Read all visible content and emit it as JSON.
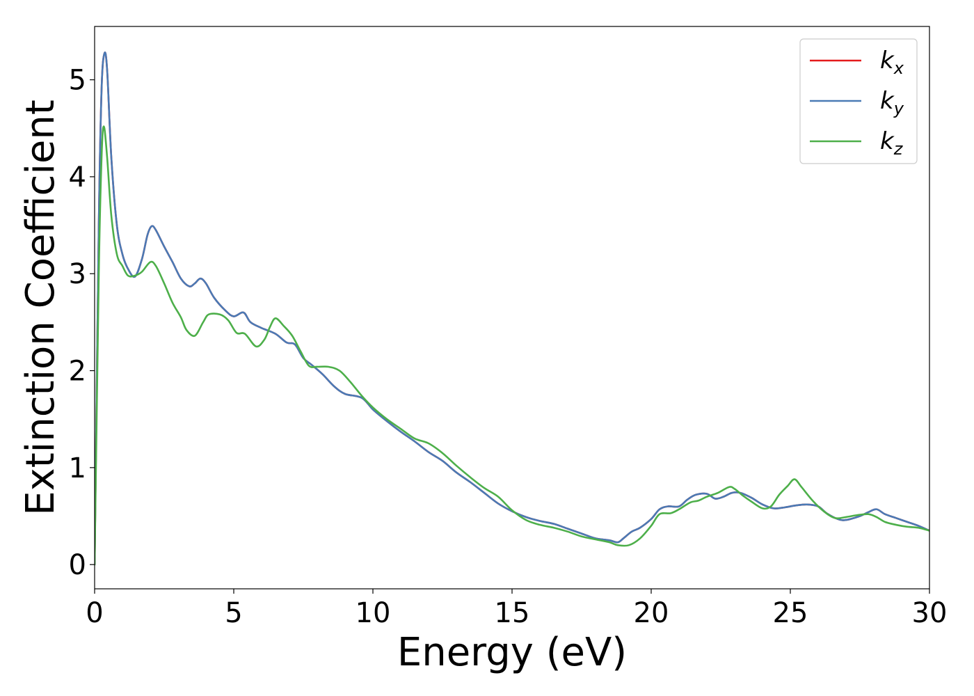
{
  "chart_data": {
    "type": "line",
    "xlabel": "Energy (eV)",
    "ylabel": "Extinction Coefficient",
    "xlim": [
      0,
      30
    ],
    "ylim": [
      -0.25,
      5.55
    ],
    "xticks": [
      0,
      5,
      10,
      15,
      20,
      25,
      30
    ],
    "xtick_labels": [
      "0",
      "5",
      "10",
      "15",
      "20",
      "25",
      "30"
    ],
    "yticks": [
      0,
      1,
      2,
      3,
      4,
      5
    ],
    "ytick_labels": [
      "0",
      "1",
      "2",
      "3",
      "4",
      "5"
    ],
    "grid": false,
    "legend_position": "top-right",
    "series": [
      {
        "name": "k",
        "subscript": "x",
        "color": "#e41a1c",
        "points": [
          [
            0.0,
            0.0
          ],
          [
            0.15,
            3.5
          ],
          [
            0.25,
            4.9
          ],
          [
            0.35,
            5.27
          ],
          [
            0.45,
            5.1
          ],
          [
            0.6,
            4.2
          ],
          [
            0.8,
            3.5
          ],
          [
            1.0,
            3.2
          ],
          [
            1.2,
            3.05
          ],
          [
            1.45,
            2.97
          ],
          [
            1.7,
            3.15
          ],
          [
            1.9,
            3.4
          ],
          [
            2.05,
            3.49
          ],
          [
            2.2,
            3.45
          ],
          [
            2.5,
            3.28
          ],
          [
            2.8,
            3.12
          ],
          [
            3.1,
            2.95
          ],
          [
            3.4,
            2.87
          ],
          [
            3.6,
            2.9
          ],
          [
            3.8,
            2.95
          ],
          [
            4.0,
            2.9
          ],
          [
            4.3,
            2.75
          ],
          [
            4.7,
            2.62
          ],
          [
            5.0,
            2.56
          ],
          [
            5.35,
            2.6
          ],
          [
            5.6,
            2.5
          ],
          [
            6.0,
            2.44
          ],
          [
            6.5,
            2.38
          ],
          [
            6.9,
            2.29
          ],
          [
            7.2,
            2.27
          ],
          [
            7.5,
            2.13
          ],
          [
            7.8,
            2.06
          ],
          [
            8.2,
            1.96
          ],
          [
            8.6,
            1.84
          ],
          [
            9.0,
            1.76
          ],
          [
            9.6,
            1.72
          ],
          [
            10.0,
            1.6
          ],
          [
            10.5,
            1.48
          ],
          [
            11.0,
            1.37
          ],
          [
            11.5,
            1.27
          ],
          [
            12.0,
            1.16
          ],
          [
            12.5,
            1.07
          ],
          [
            13.0,
            0.95
          ],
          [
            13.5,
            0.85
          ],
          [
            14.0,
            0.74
          ],
          [
            14.5,
            0.63
          ],
          [
            15.0,
            0.55
          ],
          [
            15.5,
            0.49
          ],
          [
            16.0,
            0.45
          ],
          [
            16.5,
            0.42
          ],
          [
            17.0,
            0.37
          ],
          [
            17.5,
            0.32
          ],
          [
            18.0,
            0.27
          ],
          [
            18.5,
            0.25
          ],
          [
            18.8,
            0.23
          ],
          [
            19.0,
            0.27
          ],
          [
            19.3,
            0.34
          ],
          [
            19.6,
            0.38
          ],
          [
            20.0,
            0.47
          ],
          [
            20.3,
            0.57
          ],
          [
            20.6,
            0.6
          ],
          [
            21.0,
            0.6
          ],
          [
            21.3,
            0.67
          ],
          [
            21.6,
            0.72
          ],
          [
            22.0,
            0.73
          ],
          [
            22.3,
            0.68
          ],
          [
            22.6,
            0.7
          ],
          [
            22.9,
            0.74
          ],
          [
            23.2,
            0.74
          ],
          [
            23.6,
            0.69
          ],
          [
            24.0,
            0.62
          ],
          [
            24.4,
            0.58
          ],
          [
            24.8,
            0.59
          ],
          [
            25.2,
            0.61
          ],
          [
            25.6,
            0.62
          ],
          [
            26.0,
            0.6
          ],
          [
            26.3,
            0.53
          ],
          [
            26.7,
            0.47
          ],
          [
            27.0,
            0.46
          ],
          [
            27.5,
            0.5
          ],
          [
            27.8,
            0.54
          ],
          [
            28.1,
            0.57
          ],
          [
            28.4,
            0.52
          ],
          [
            28.8,
            0.48
          ],
          [
            29.2,
            0.44
          ],
          [
            29.6,
            0.4
          ],
          [
            30.0,
            0.35
          ]
        ]
      },
      {
        "name": "k",
        "subscript": "y",
        "color": "#4a7ab5",
        "points": [
          [
            0.0,
            0.0
          ],
          [
            0.15,
            3.5
          ],
          [
            0.25,
            4.9
          ],
          [
            0.35,
            5.27
          ],
          [
            0.45,
            5.1
          ],
          [
            0.6,
            4.2
          ],
          [
            0.8,
            3.5
          ],
          [
            1.0,
            3.2
          ],
          [
            1.2,
            3.05
          ],
          [
            1.45,
            2.97
          ],
          [
            1.7,
            3.15
          ],
          [
            1.9,
            3.4
          ],
          [
            2.05,
            3.49
          ],
          [
            2.2,
            3.45
          ],
          [
            2.5,
            3.28
          ],
          [
            2.8,
            3.12
          ],
          [
            3.1,
            2.95
          ],
          [
            3.4,
            2.87
          ],
          [
            3.6,
            2.9
          ],
          [
            3.8,
            2.95
          ],
          [
            4.0,
            2.9
          ],
          [
            4.3,
            2.75
          ],
          [
            4.7,
            2.62
          ],
          [
            5.0,
            2.56
          ],
          [
            5.35,
            2.6
          ],
          [
            5.6,
            2.5
          ],
          [
            6.0,
            2.44
          ],
          [
            6.5,
            2.38
          ],
          [
            6.9,
            2.29
          ],
          [
            7.2,
            2.27
          ],
          [
            7.5,
            2.13
          ],
          [
            7.8,
            2.06
          ],
          [
            8.2,
            1.96
          ],
          [
            8.6,
            1.84
          ],
          [
            9.0,
            1.76
          ],
          [
            9.6,
            1.72
          ],
          [
            10.0,
            1.6
          ],
          [
            10.5,
            1.48
          ],
          [
            11.0,
            1.37
          ],
          [
            11.5,
            1.27
          ],
          [
            12.0,
            1.16
          ],
          [
            12.5,
            1.07
          ],
          [
            13.0,
            0.95
          ],
          [
            13.5,
            0.85
          ],
          [
            14.0,
            0.74
          ],
          [
            14.5,
            0.63
          ],
          [
            15.0,
            0.55
          ],
          [
            15.5,
            0.49
          ],
          [
            16.0,
            0.45
          ],
          [
            16.5,
            0.42
          ],
          [
            17.0,
            0.37
          ],
          [
            17.5,
            0.32
          ],
          [
            18.0,
            0.27
          ],
          [
            18.5,
            0.25
          ],
          [
            18.8,
            0.23
          ],
          [
            19.0,
            0.27
          ],
          [
            19.3,
            0.34
          ],
          [
            19.6,
            0.38
          ],
          [
            20.0,
            0.47
          ],
          [
            20.3,
            0.57
          ],
          [
            20.6,
            0.6
          ],
          [
            21.0,
            0.6
          ],
          [
            21.3,
            0.67
          ],
          [
            21.6,
            0.72
          ],
          [
            22.0,
            0.73
          ],
          [
            22.3,
            0.68
          ],
          [
            22.6,
            0.7
          ],
          [
            22.9,
            0.74
          ],
          [
            23.2,
            0.74
          ],
          [
            23.6,
            0.69
          ],
          [
            24.0,
            0.62
          ],
          [
            24.4,
            0.58
          ],
          [
            24.8,
            0.59
          ],
          [
            25.2,
            0.61
          ],
          [
            25.6,
            0.62
          ],
          [
            26.0,
            0.6
          ],
          [
            26.3,
            0.53
          ],
          [
            26.7,
            0.47
          ],
          [
            27.0,
            0.46
          ],
          [
            27.5,
            0.5
          ],
          [
            27.8,
            0.54
          ],
          [
            28.1,
            0.57
          ],
          [
            28.4,
            0.52
          ],
          [
            28.8,
            0.48
          ],
          [
            29.2,
            0.44
          ],
          [
            29.6,
            0.4
          ],
          [
            30.0,
            0.35
          ]
        ]
      },
      {
        "name": "k",
        "subscript": "z",
        "color": "#4daf4a",
        "points": [
          [
            0.0,
            0.0
          ],
          [
            0.15,
            3.0
          ],
          [
            0.25,
            4.2
          ],
          [
            0.33,
            4.52
          ],
          [
            0.45,
            4.2
          ],
          [
            0.6,
            3.6
          ],
          [
            0.8,
            3.2
          ],
          [
            1.0,
            3.08
          ],
          [
            1.2,
            2.98
          ],
          [
            1.45,
            2.98
          ],
          [
            1.7,
            3.02
          ],
          [
            2.0,
            3.12
          ],
          [
            2.2,
            3.08
          ],
          [
            2.5,
            2.9
          ],
          [
            2.8,
            2.7
          ],
          [
            3.1,
            2.55
          ],
          [
            3.3,
            2.42
          ],
          [
            3.6,
            2.36
          ],
          [
            3.9,
            2.5
          ],
          [
            4.1,
            2.58
          ],
          [
            4.5,
            2.58
          ],
          [
            4.8,
            2.52
          ],
          [
            5.1,
            2.39
          ],
          [
            5.4,
            2.38
          ],
          [
            5.8,
            2.25
          ],
          [
            6.1,
            2.32
          ],
          [
            6.3,
            2.45
          ],
          [
            6.5,
            2.54
          ],
          [
            6.8,
            2.46
          ],
          [
            7.1,
            2.36
          ],
          [
            7.4,
            2.2
          ],
          [
            7.7,
            2.05
          ],
          [
            8.0,
            2.04
          ],
          [
            8.4,
            2.04
          ],
          [
            8.8,
            2.0
          ],
          [
            9.2,
            1.88
          ],
          [
            9.6,
            1.74
          ],
          [
            10.0,
            1.62
          ],
          [
            10.5,
            1.5
          ],
          [
            11.0,
            1.4
          ],
          [
            11.5,
            1.3
          ],
          [
            12.0,
            1.25
          ],
          [
            12.5,
            1.15
          ],
          [
            13.0,
            1.02
          ],
          [
            13.5,
            0.9
          ],
          [
            14.0,
            0.79
          ],
          [
            14.5,
            0.7
          ],
          [
            15.0,
            0.56
          ],
          [
            15.5,
            0.46
          ],
          [
            16.0,
            0.41
          ],
          [
            16.5,
            0.38
          ],
          [
            17.0,
            0.34
          ],
          [
            17.5,
            0.29
          ],
          [
            18.0,
            0.26
          ],
          [
            18.5,
            0.23
          ],
          [
            18.8,
            0.2
          ],
          [
            19.2,
            0.2
          ],
          [
            19.6,
            0.27
          ],
          [
            20.0,
            0.4
          ],
          [
            20.3,
            0.52
          ],
          [
            20.7,
            0.53
          ],
          [
            21.0,
            0.57
          ],
          [
            21.4,
            0.64
          ],
          [
            21.7,
            0.66
          ],
          [
            22.0,
            0.7
          ],
          [
            22.4,
            0.74
          ],
          [
            22.8,
            0.8
          ],
          [
            23.0,
            0.78
          ],
          [
            23.3,
            0.71
          ],
          [
            23.6,
            0.65
          ],
          [
            24.0,
            0.58
          ],
          [
            24.3,
            0.6
          ],
          [
            24.6,
            0.72
          ],
          [
            24.9,
            0.81
          ],
          [
            25.15,
            0.88
          ],
          [
            25.4,
            0.8
          ],
          [
            25.8,
            0.66
          ],
          [
            26.2,
            0.55
          ],
          [
            26.6,
            0.48
          ],
          [
            27.0,
            0.49
          ],
          [
            27.4,
            0.51
          ],
          [
            27.8,
            0.52
          ],
          [
            28.1,
            0.49
          ],
          [
            28.4,
            0.44
          ],
          [
            28.8,
            0.41
          ],
          [
            29.2,
            0.39
          ],
          [
            29.6,
            0.38
          ],
          [
            30.0,
            0.35
          ]
        ]
      }
    ]
  }
}
